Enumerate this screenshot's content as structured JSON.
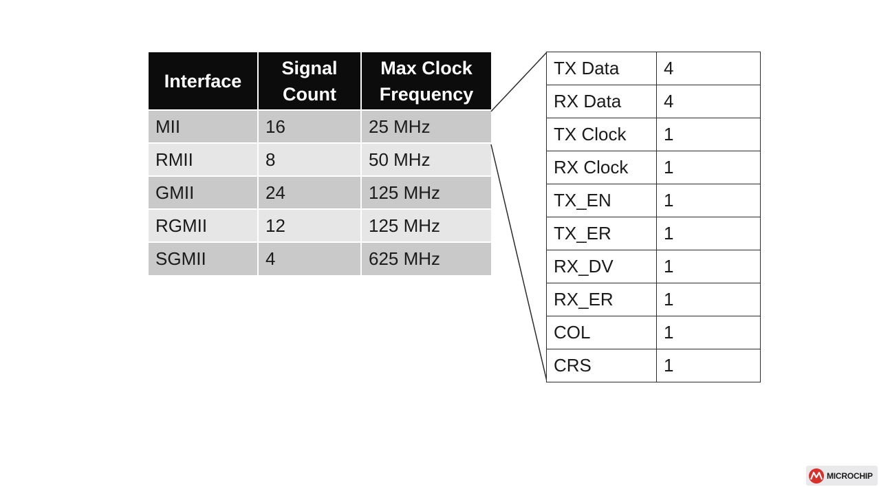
{
  "main_table": {
    "headers": [
      "Interface",
      "Signal Count",
      "Max Clock Frequency"
    ],
    "rows": [
      {
        "interface": "MII",
        "signal_count": "16",
        "max_clock": "25 MHz"
      },
      {
        "interface": "RMII",
        "signal_count": "8",
        "max_clock": "50 MHz"
      },
      {
        "interface": "GMII",
        "signal_count": "24",
        "max_clock": "125 MHz"
      },
      {
        "interface": "RGMII",
        "signal_count": "12",
        "max_clock": "125 MHz"
      },
      {
        "interface": "SGMII",
        "signal_count": "4",
        "max_clock": "625 MHz"
      }
    ]
  },
  "detail_table": {
    "rows": [
      {
        "signal": "TX Data",
        "count": "4"
      },
      {
        "signal": "RX Data",
        "count": "4"
      },
      {
        "signal": "TX Clock",
        "count": "1"
      },
      {
        "signal": "RX Clock",
        "count": "1"
      },
      {
        "signal": "TX_EN",
        "count": "1"
      },
      {
        "signal": "TX_ER",
        "count": "1"
      },
      {
        "signal": "RX_DV",
        "count": "1"
      },
      {
        "signal": "RX_ER",
        "count": "1"
      },
      {
        "signal": "COL",
        "count": "1"
      },
      {
        "signal": "CRS",
        "count": "1"
      }
    ]
  },
  "logo": {
    "text": "MICROCHIP",
    "icon": "microchip-logo-icon",
    "color": "#d9302c"
  }
}
